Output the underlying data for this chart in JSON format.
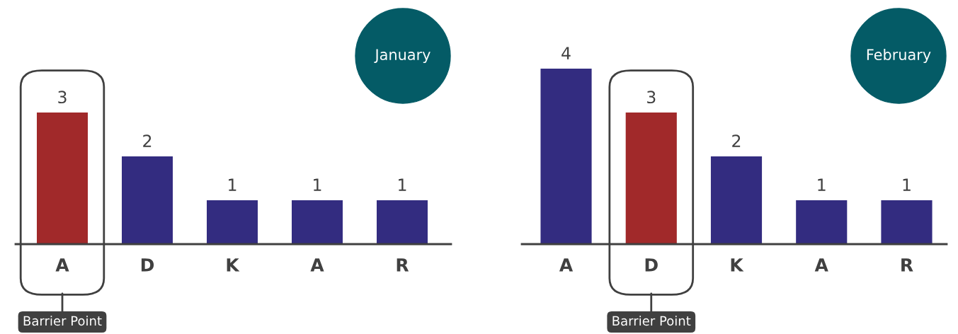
{
  "chart_data": [
    {
      "type": "bar",
      "title": "January",
      "categories": [
        "A",
        "D",
        "K",
        "A",
        "R"
      ],
      "values": [
        3,
        2,
        1,
        1,
        1
      ],
      "colors": [
        "#a1292a",
        "#332c80",
        "#332c80",
        "#332c80",
        "#332c80"
      ],
      "data_labels": true,
      "tick_labels": "x",
      "grid": false,
      "legend": false,
      "annotations": [
        {
          "text": "Barrier Point",
          "x": "A"
        }
      ]
    },
    {
      "type": "bar",
      "title": "February",
      "categories": [
        "A",
        "D",
        "K",
        "A",
        "R"
      ],
      "values": [
        4,
        3,
        2,
        1,
        1
      ],
      "colors": [
        "#332c80",
        "#a1292a",
        "#332c80",
        "#332c80",
        "#332c80"
      ],
      "data_labels": true,
      "tick_labels": "x",
      "grid": false,
      "legend": false,
      "annotations": [
        {
          "text": "Barrier Point",
          "x": "D"
        }
      ]
    }
  ]
}
